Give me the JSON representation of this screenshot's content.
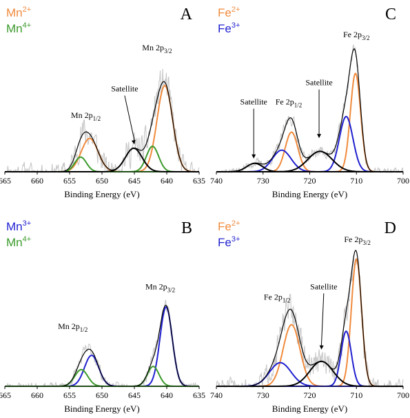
{
  "colors": {
    "mn2": "#f08a3c",
    "mn3": "#1f1fd0",
    "mn4": "#3a9a2a",
    "fe2": "#f08a3c",
    "fe3": "#1f1fd0",
    "envelope": "#000000",
    "fit_satellite": "#000000",
    "raw": "#c8c8c8",
    "axis": "#000000"
  },
  "chart_data": [
    {
      "type": "line",
      "panel_label": "A",
      "xlabel": "Binding Energy (eV)",
      "ylabel": "",
      "xlim": [
        665,
        635
      ],
      "x_reversed": true,
      "x_ticks": [
        "665",
        "660",
        "655",
        "650",
        "645",
        "640",
        "635"
      ],
      "grid": false,
      "legend": {
        "placement": "top-left",
        "entries": [
          {
            "base": "Mn",
            "sup": "2+",
            "color_key": "mn2"
          },
          {
            "base": "Mn",
            "sup": "4+",
            "color_key": "mn4"
          }
        ]
      },
      "annotations": [
        {
          "base": "Mn 2p",
          "sub": "1/2",
          "x": 652.5,
          "y": 0.55
        },
        {
          "base": "Satellite",
          "sub": "",
          "x": 646.5,
          "y": 0.82,
          "arrow_to": [
            645.0,
            0.28
          ]
        },
        {
          "base": "Mn 2p",
          "sub": "3/2",
          "x": 641.5,
          "y": 1.24
        }
      ],
      "series": [
        {
          "name": "Mn²⁺",
          "color_key": "mn2",
          "peaks": [
            [
              640.3,
              0.88,
              1.2
            ],
            [
              651.9,
              0.34,
              1.3
            ]
          ]
        },
        {
          "name": "Mn⁴⁺",
          "color_key": "mn4",
          "peaks": [
            [
              642.2,
              0.26,
              0.95
            ],
            [
              653.3,
              0.15,
              0.9
            ]
          ]
        },
        {
          "role": "satellite",
          "color_key": "fit_satellite",
          "peaks": [
            [
              645.1,
              0.24,
              1.3
            ]
          ]
        },
        {
          "role": "envelope",
          "color_key": "envelope"
        },
        {
          "role": "raw",
          "color_key": "raw",
          "noise": 0.12,
          "seed": 11
        }
      ]
    },
    {
      "type": "line",
      "panel_label": "B",
      "xlabel": "Binding Energy (eV)",
      "ylabel": "",
      "xlim": [
        665,
        635
      ],
      "x_reversed": true,
      "x_ticks": [
        "665",
        "660",
        "655",
        "650",
        "645",
        "640",
        "635"
      ],
      "grid": false,
      "legend": {
        "placement": "top-left",
        "entries": [
          {
            "base": "Mn",
            "sup": "3+",
            "color_key": "mn3"
          },
          {
            "base": "Mn",
            "sup": "4+",
            "color_key": "mn4"
          }
        ]
      },
      "annotations": [
        {
          "base": "Mn 2p",
          "sub": "1/2",
          "x": 654.5,
          "y": 0.72
        },
        {
          "base": "Mn 2p",
          "sub": "3/2",
          "x": 641.0,
          "y": 1.22
        }
      ],
      "series": [
        {
          "name": "Mn³⁺",
          "color_key": "mn3",
          "peaks": [
            [
              640.1,
              1.0,
              0.95
            ],
            [
              651.6,
              0.39,
              1.1
            ]
          ]
        },
        {
          "name": "Mn⁴⁺",
          "color_key": "mn4",
          "peaks": [
            [
              642.1,
              0.25,
              0.9
            ],
            [
              653.2,
              0.21,
              1.0
            ]
          ]
        },
        {
          "role": "envelope",
          "color_key": "envelope"
        },
        {
          "role": "raw",
          "color_key": "raw",
          "noise": 0.06,
          "seed": 23
        }
      ]
    },
    {
      "type": "line",
      "panel_label": "C",
      "xlabel": "Binding Energy (eV)",
      "ylabel": "",
      "xlim": [
        740,
        700
      ],
      "x_reversed": true,
      "x_ticks": [
        "740",
        "730",
        "720",
        "710",
        "700"
      ],
      "grid": false,
      "legend": {
        "placement": "top-left",
        "entries": [
          {
            "base": "Fe",
            "sup": "2+",
            "color_key": "fe2"
          },
          {
            "base": "Fe",
            "sup": "3+",
            "color_key": "fe3"
          }
        ]
      },
      "annotations": [
        {
          "base": "Satellite",
          "sub": "",
          "x": 732.0,
          "y": 0.56,
          "arrow_to": [
            732.0,
            0.11
          ]
        },
        {
          "base": "Fe 2p",
          "sub": "1/2",
          "x": 724.5,
          "y": 0.56
        },
        {
          "base": "Satellite",
          "sub": "",
          "x": 718.0,
          "y": 0.72,
          "arrow_to": [
            718.0,
            0.28
          ]
        },
        {
          "base": "Fe 2p",
          "sub": "3/2",
          "x": 710.0,
          "y": 1.12
        }
      ],
      "series": [
        {
          "name": "Fe²⁺",
          "color_key": "fe2",
          "peaks": [
            [
              710.2,
              0.82,
              1.1
            ],
            [
              723.9,
              0.33,
              1.35
            ]
          ]
        },
        {
          "name": "Fe³⁺",
          "color_key": "fe3",
          "peaks": [
            [
              712.2,
              0.46,
              1.45
            ],
            [
              726.0,
              0.18,
              2.0
            ]
          ]
        },
        {
          "role": "satellite",
          "color_key": "fit_satellite",
          "peaks": [
            [
              717.8,
              0.17,
              2.6
            ],
            [
              731.8,
              0.07,
              1.7
            ]
          ]
        },
        {
          "role": "envelope",
          "color_key": "envelope"
        },
        {
          "role": "raw",
          "color_key": "raw",
          "noise": 0.04,
          "seed": 37
        }
      ]
    },
    {
      "type": "line",
      "panel_label": "D",
      "xlabel": "Binding Energy (eV)",
      "ylabel": "",
      "xlim": [
        740,
        700
      ],
      "x_reversed": true,
      "x_ticks": [
        "740",
        "730",
        "720",
        "710",
        "700"
      ],
      "grid": false,
      "legend": {
        "placement": "top-left",
        "entries": [
          {
            "base": "Fe",
            "sup": "2+",
            "color_key": "fe2"
          },
          {
            "base": "Fe",
            "sup": "3+",
            "color_key": "fe3"
          }
        ]
      },
      "annotations": [
        {
          "base": "Fe 2p",
          "sub": "1/2",
          "x": 727.0,
          "y": 0.66
        },
        {
          "base": "Satellite",
          "sub": "",
          "x": 717.0,
          "y": 0.74,
          "arrow_to": [
            717.5,
            0.28
          ]
        },
        {
          "base": "Fe 2p",
          "sub": "3/2",
          "x": 709.8,
          "y": 1.1
        }
      ],
      "series": [
        {
          "name": "Fe²⁺",
          "color_key": "fe2",
          "peaks": [
            [
              710.0,
              0.97,
              1.1
            ],
            [
              723.9,
              0.47,
              1.8
            ]
          ]
        },
        {
          "name": "Fe³⁺",
          "color_key": "fe3",
          "peaks": [
            [
              712.2,
              0.42,
              1.1
            ],
            [
              726.3,
              0.18,
              2.3
            ]
          ]
        },
        {
          "role": "satellite",
          "color_key": "fit_satellite",
          "peaks": [
            [
              717.5,
              0.19,
              2.5
            ]
          ]
        },
        {
          "role": "envelope",
          "color_key": "envelope"
        },
        {
          "role": "raw",
          "color_key": "raw",
          "noise": 0.08,
          "seed": 51
        }
      ]
    }
  ]
}
